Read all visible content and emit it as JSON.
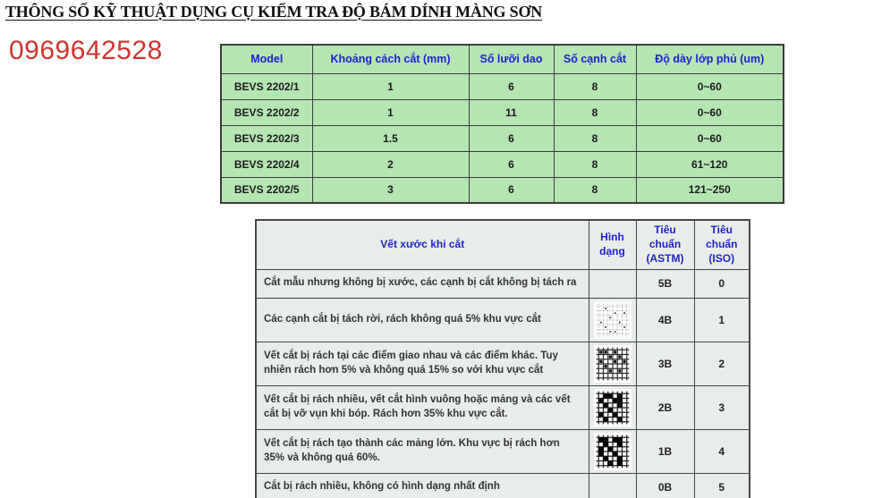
{
  "title": "THÔNG SỐ KỸ THUẬT DỤNG CỤ KIỂM TRA ĐỘ BÁM DÍNH MÀNG SƠN",
  "phone": "0969642528",
  "colors": {
    "title_text": "#111111",
    "phone_red": "#d0342e",
    "header_blue": "#2122cd",
    "spec_table_green": "#b4e6b2",
    "rating_row_bg": "#e8ede9",
    "border_dark": "#3c3c3c"
  },
  "spec_table": {
    "headers": [
      "Model",
      "Khoảng cách cắt (mm)",
      "Số lưỡi dao",
      "Số cạnh cắt",
      "Độ dày lớp phủ (um)"
    ],
    "rows": [
      [
        "BEVS 2202/1",
        "1",
        "6",
        "8",
        "0~60"
      ],
      [
        "BEVS 2202/2",
        "1",
        "11",
        "8",
        "0~60"
      ],
      [
        "BEVS 2202/3",
        "1.5",
        "6",
        "8",
        "0~60"
      ],
      [
        "BEVS 2202/4",
        "2",
        "6",
        "8",
        "61~120"
      ],
      [
        "BEVS 2202/5",
        "3",
        "6",
        "8",
        "121~250"
      ]
    ]
  },
  "rating_table": {
    "headers": [
      "Vết xước khi cắt",
      "Hình dạng",
      "Tiêu chuẩn (ASTM)",
      "Tiêu chuẩn (ISO)"
    ],
    "rows": [
      {
        "description": "Cắt mẫu nhưng không bị xước, các cạnh bị cắt không bị tách ra",
        "shape_icon": null,
        "astm": "5B",
        "iso": "0"
      },
      {
        "description": "Các cạnh cắt bị tách rời, rách không quá 5% khu vực cắt",
        "shape_icon": "crosshatch-grid-light-dots-icon",
        "astm": "4B",
        "iso": "1"
      },
      {
        "description": "Vết cắt bị rách tại các điểm giao nhau và các điểm khác. Tuy nhiên rách hơn 5% và không quá 15% so với khu vực cắt",
        "shape_icon": "crosshatch-grid-small-blobs-icon",
        "astm": "3B",
        "iso": "2"
      },
      {
        "description": "Vết cắt bị rách nhiều, vết cắt hình vuông hoặc mảng và các vết cắt bị vỡ vụn khi bóp. Rách hơn 35% khu vực cắt.",
        "shape_icon": "crosshatch-grid-medium-blobs-icon",
        "astm": "2B",
        "iso": "3"
      },
      {
        "description": "Vết cắt bị rách tạo thành các mảng lớn. Khu vực bị rách hơn 35% và không quá 60%.",
        "shape_icon": "crosshatch-grid-dense-blobs-icon",
        "astm": "1B",
        "iso": "4"
      },
      {
        "description": "Cắt bị rách nhiều, không có hình dạng nhất định",
        "shape_icon": null,
        "astm": "0B",
        "iso": "5"
      }
    ]
  }
}
